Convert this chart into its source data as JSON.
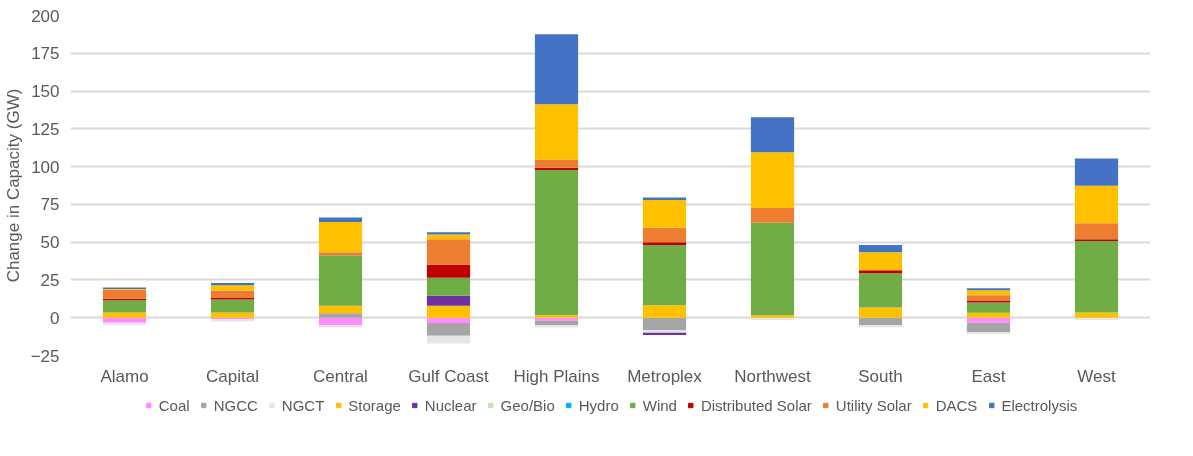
{
  "chart_data": {
    "type": "bar",
    "stacked": true,
    "ylabel": "Change in Capacity (GW)",
    "categories": [
      "Alamo",
      "Capital",
      "Central",
      "Gulf Coast",
      "High Plains",
      "Metroplex",
      "Northwest",
      "South",
      "East",
      "West"
    ],
    "series": [
      {
        "name": "Coal",
        "color": "#ff8cff",
        "values": [
          -3.4,
          -1,
          -5,
          -3.5,
          -2,
          0,
          0,
          0,
          -3.3,
          0
        ]
      },
      {
        "name": "NGCC",
        "color": "#a5a5a5",
        "values": [
          0,
          0,
          2.9,
          -8.5,
          -3,
          -8.3,
          null,
          -4.8,
          -6.2,
          null
        ]
      },
      {
        "name": "NGCT",
        "color": "#e7e6e6",
        "values": [
          -1.5,
          -1.5,
          -1.5,
          -5,
          -1.5,
          -1.7,
          -1.5,
          -1.5,
          -1.5,
          -1.5
        ]
      },
      {
        "name": "Storage",
        "color": "#ffc000",
        "values": [
          3.5,
          3.5,
          5,
          8,
          1.7,
          8.3,
          1.7,
          6.7,
          3.3,
          3.4
        ]
      },
      {
        "name": "Nuclear",
        "color": "#7030a0",
        "values": [
          0,
          0,
          0,
          6.5,
          0,
          -1.5,
          0,
          0,
          0,
          0
        ]
      },
      {
        "name": "Geo/Bio",
        "color": "#c5e0b4",
        "values": [
          0,
          0,
          0,
          0,
          0,
          0,
          0,
          0,
          0,
          0
        ]
      },
      {
        "name": "Hydro",
        "color": "#00b0f0",
        "values": [
          0,
          0,
          0,
          0,
          0,
          0,
          0,
          0,
          0,
          0
        ]
      },
      {
        "name": "Wind",
        "color": "#70ad47",
        "values": [
          8,
          8.5,
          33.5,
          12,
          96,
          39.8,
          61.2,
          22.8,
          6.7,
          47.3
        ]
      },
      {
        "name": "Distributed Solar",
        "color": "#c00000",
        "values": [
          1,
          1,
          0,
          8.5,
          1.5,
          1.9,
          0,
          1.9,
          1.4,
          1.3
        ]
      },
      {
        "name": "Utility Solar",
        "color": "#ed7d31",
        "values": [
          6,
          5,
          2,
          17,
          5.3,
          9.5,
          9.7,
          0,
          3.4,
          10.5
        ]
      },
      {
        "name": "DACS",
        "color": "#ffc000",
        "values": [
          0.5,
          3.5,
          20,
          3,
          36.7,
          18.4,
          36.9,
          11.9,
          3.3,
          24.9
        ]
      },
      {
        "name": "Electrolysis",
        "color": "#4472c4",
        "values": [
          1,
          1.5,
          3,
          1.5,
          46.4,
          1.6,
          23.1,
          4.8,
          1.4,
          18
        ]
      }
    ],
    "ylim": [
      -25,
      200
    ],
    "yticks": [
      -25,
      0,
      25,
      50,
      75,
      100,
      125,
      150,
      175,
      200
    ],
    "grid": "y",
    "legend": "bottom"
  }
}
